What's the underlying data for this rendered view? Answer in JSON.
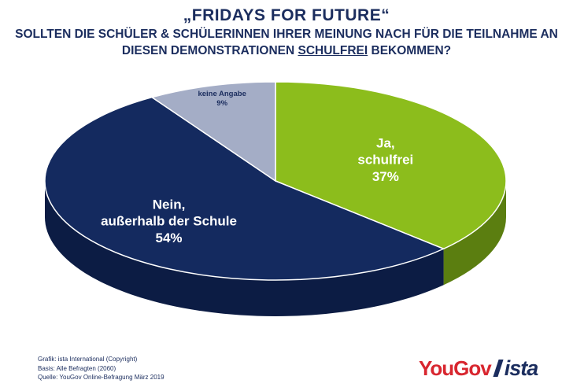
{
  "chart_data": {
    "type": "pie",
    "title": "„FRIDAYS FOR FUTURE“",
    "subtitle_before": "SOLLTEN DIE SCHÜLER & SCHÜLERINNEN IHRER MEINUNG NACH FÜR DIE TEILNAHME AN DIESEN DEMONSTRATIONEN ",
    "subtitle_underlined": "SCHULFREI",
    "subtitle_after": " BEKOMMEN?",
    "slices": [
      {
        "label_lines": [
          "Ja,",
          "schulfrei"
        ],
        "value": 37,
        "value_label": "37%",
        "color": "#8cbd1c",
        "side_color": "#5b7e10"
      },
      {
        "label_lines": [
          "Nein,",
          "außerhalb der Schule"
        ],
        "value": 54,
        "value_label": "54%",
        "color": "#142a5f",
        "side_color": "#0c1c44"
      },
      {
        "label_lines": [
          "keine Angabe"
        ],
        "value": 9,
        "value_label": "9%",
        "color": "#a4adc6",
        "side_color": "#6f7893"
      }
    ],
    "start_angle_deg": 0,
    "direction": "clockwise",
    "style": "3d"
  },
  "footer": {
    "grafik": "Grafik: ista International (Copyright)",
    "basis": "Basis: Alle Befragten (2060)",
    "quelle": "Quelle: YouGov Online-Befragung März 2019"
  },
  "logos": {
    "yougov": "YouGov",
    "ista": "ista"
  }
}
